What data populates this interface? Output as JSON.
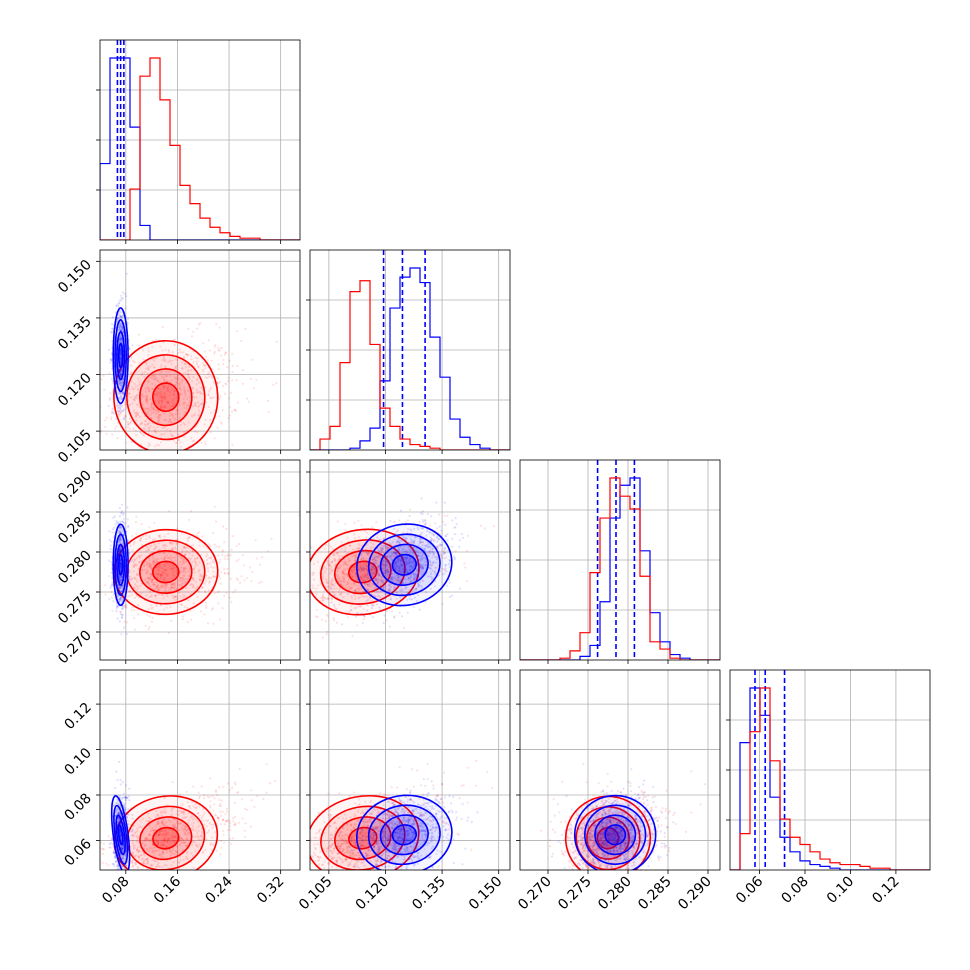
{
  "chart_data": {
    "type": "corner",
    "parameters": [
      {
        "index": 0,
        "range": [
          0.04,
          0.35
        ],
        "ticks": [
          0.08,
          0.16,
          0.24,
          0.32
        ],
        "tick_labels": [
          "0.08",
          "0.16",
          "0.24",
          "0.32"
        ]
      },
      {
        "index": 1,
        "range": [
          0.1,
          0.153
        ],
        "ticks": [
          0.105,
          0.12,
          0.135,
          0.15
        ],
        "tick_labels": [
          "0.105",
          "0.120",
          "0.135",
          "0.150"
        ]
      },
      {
        "index": 2,
        "range": [
          0.2665,
          0.2915
        ],
        "ticks": [
          0.27,
          0.275,
          0.28,
          0.285,
          0.29
        ],
        "tick_labels": [
          "0.270",
          "0.275",
          "0.280",
          "0.285",
          "0.290"
        ]
      },
      {
        "index": 3,
        "range": [
          0.047,
          0.135
        ],
        "ticks": [
          0.06,
          0.08,
          0.1,
          0.12
        ],
        "tick_labels": [
          "0.06",
          "0.08",
          "0.10",
          "0.12"
        ]
      }
    ],
    "series": [
      {
        "name": "",
        "color": "#0000ff",
        "mean": [
          0.072,
          0.125,
          0.2784,
          0.0625
        ],
        "sd": [
          0.005,
          0.0055,
          0.0022,
          0.0075
        ],
        "quantiles_shown": true,
        "quantiles": [
          [
            0.067,
            0.072,
            0.077
          ],
          [
            0.1195,
            0.1245,
            0.1305
          ],
          [
            0.2762,
            0.2785,
            0.2808
          ],
          [
            0.058,
            0.0625,
            0.071
          ]
        ],
        "hist": [
          [
            0.42,
            1.0,
            1.0,
            0.62,
            0.08,
            0,
            0,
            0,
            0,
            0,
            0,
            0,
            0,
            0,
            0,
            0,
            0,
            0,
            0,
            0
          ],
          [
            0,
            0,
            0,
            0,
            0.01,
            0.05,
            0.12,
            0.38,
            0.78,
            0.95,
            1.0,
            0.92,
            0.62,
            0.4,
            0.17,
            0.07,
            0.03,
            0.01,
            0,
            0
          ],
          [
            0,
            0,
            0,
            0,
            0,
            0,
            0.02,
            0.08,
            0.32,
            0.78,
            0.96,
            1.0,
            0.6,
            0.26,
            0.1,
            0.03,
            0.01,
            0,
            0,
            0
          ],
          [
            0,
            0.7,
            1.0,
            0.85,
            0.4,
            0.18,
            0.1,
            0.05,
            0.03,
            0.02,
            0.01,
            0,
            0,
            0,
            0,
            0,
            0,
            0,
            0,
            0
          ]
        ]
      },
      {
        "name": "",
        "color": "#ff0000",
        "mean": [
          0.142,
          0.114,
          0.2775,
          0.061
        ],
        "sd": [
          0.035,
          0.0065,
          0.0023,
          0.008
        ],
        "quantiles_shown": false,
        "hist": [
          [
            0,
            0,
            0,
            0.28,
            0.9,
            1.0,
            0.77,
            0.52,
            0.3,
            0.2,
            0.12,
            0.07,
            0.04,
            0.02,
            0.01,
            0.01,
            0,
            0,
            0,
            0
          ],
          [
            0,
            0.06,
            0.13,
            0.48,
            0.87,
            0.93,
            0.58,
            0.23,
            0.13,
            0.06,
            0.03,
            0.02,
            0.01,
            0,
            0,
            0,
            0,
            0,
            0,
            0
          ],
          [
            0,
            0,
            0,
            0,
            0.01,
            0.05,
            0.15,
            0.48,
            0.78,
            1.0,
            0.9,
            0.83,
            0.46,
            0.1,
            0.06,
            0.01,
            0,
            0,
            0,
            0
          ],
          [
            0,
            0.2,
            0.76,
            1.0,
            0.6,
            0.28,
            0.18,
            0.14,
            0.1,
            0.06,
            0.04,
            0.03,
            0.03,
            0.02,
            0.01,
            0.01,
            0,
            0,
            0,
            0
          ]
        ]
      }
    ],
    "scatter_points_per_panel": 4000,
    "legend": "none",
    "grid": true
  }
}
